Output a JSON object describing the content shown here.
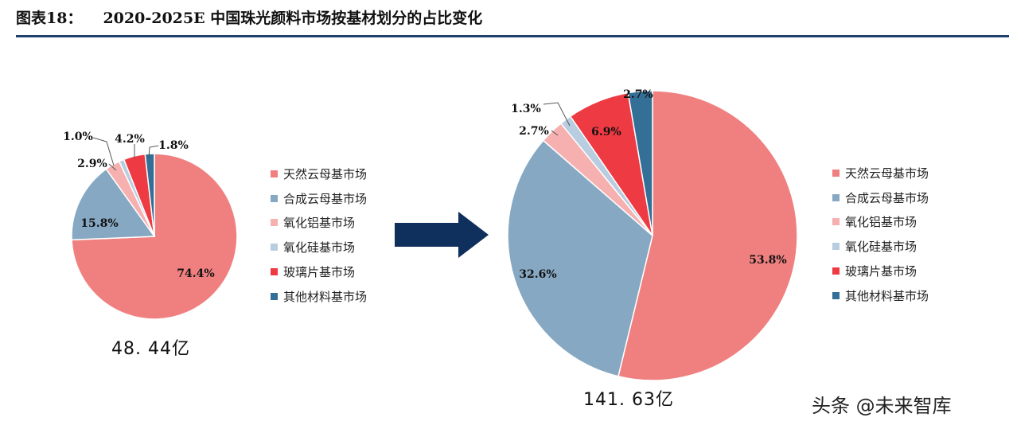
{
  "title": {
    "figure_label": "图表18：",
    "text": "2020-2025E 中国珠光颜料市场按基材划分的占比变化"
  },
  "colors": {
    "天然云母基市场": "#f08080",
    "合成云母基市场": "#86a8c2",
    "氧化铝基市场": "#f6b0b0",
    "氧化硅基市场": "#b8cde0",
    "玻璃片基市场": "#ee3a42",
    "其他材料基市场": "#336f96"
  },
  "chart_data": [
    {
      "type": "pie",
      "total_label": "48. 44亿",
      "slices": [
        {
          "name": "天然云母基市场",
          "value": 74.4,
          "label": "74.4%"
        },
        {
          "name": "合成云母基市场",
          "value": 15.8,
          "label": "15.8%"
        },
        {
          "name": "氧化铝基市场",
          "value": 2.9,
          "label": "2.9%"
        },
        {
          "name": "氧化硅基市场",
          "value": 1.0,
          "label": "1.0%"
        },
        {
          "name": "玻璃片基市场",
          "value": 4.2,
          "label": "4.2%"
        },
        {
          "name": "其他材料基市场",
          "value": 1.8,
          "label": "1.8%"
        }
      ],
      "legend": [
        "天然云母基市场",
        "合成云母基市场",
        "氧化铝基市场",
        "氧化硅基市场",
        "玻璃片基市场",
        "其他材料基市场"
      ],
      "legend_placement": "right"
    },
    {
      "type": "pie",
      "total_label": "141. 63亿",
      "slices": [
        {
          "name": "天然云母基市场",
          "value": 53.8,
          "label": "53.8%"
        },
        {
          "name": "合成云母基市场",
          "value": 32.6,
          "label": "32.6%"
        },
        {
          "name": "氧化铝基市场",
          "value": 2.7,
          "label": "2.7%"
        },
        {
          "name": "氧化硅基市场",
          "value": 1.3,
          "label": "1.3%"
        },
        {
          "name": "玻璃片基市场",
          "value": 6.9,
          "label": "6.9%"
        },
        {
          "name": "其他材料基市场",
          "value": 2.7,
          "label": "2.7%"
        }
      ],
      "legend": [
        "天然云母基市场",
        "合成云母基市场",
        "氧化铝基市场",
        "氧化硅基市场",
        "玻璃片基市场",
        "其他材料基市场"
      ],
      "legend_placement": "right"
    }
  ],
  "watermark": "头条 @未来智库"
}
